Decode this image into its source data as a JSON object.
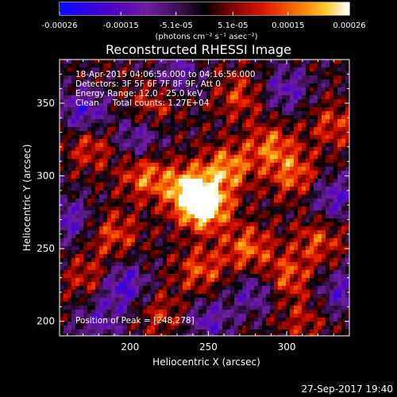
{
  "chart_data": {
    "type": "heatmap",
    "title": "Reconstructed RHESSI Image",
    "xlabel": "Heliocentric X (arcsec)",
    "ylabel": "Heliocentric Y (arcsec)",
    "xlim": [
      155,
      340
    ],
    "ylim": [
      190,
      380
    ],
    "xticks": [
      "200",
      "250",
      "300"
    ],
    "yticks": [
      "200",
      "250",
      "300",
      "350"
    ],
    "colorbar": {
      "min": -0.00026,
      "max": 0.00026,
      "tick_labels": [
        "-0.00026",
        "-0.00015",
        "-5.1e-05",
        "5.1e-05",
        "0.00015",
        "0.00026"
      ],
      "unit_label": "(photons cm⁻² s⁻¹ asec⁻²)"
    },
    "annotations": {
      "time_range": "18-Apr-2015 04:06:56.000 to 04:16:56.000",
      "detectors": "Detectors: 3F 5F 6F 7F 8F 9F, Att 0",
      "energy_range": "Energy Range: 12.0 - 25.0 keV",
      "method_counts": "Clean     Total counts: 1.27E+04",
      "peak_position": "Position of Peak = [248,278]"
    },
    "peak": {
      "x": 248,
      "y": 278
    },
    "hotspots": [
      {
        "x": 248,
        "y": 278,
        "v": 0.00026
      },
      {
        "x": 238,
        "y": 290,
        "v": 0.00024
      },
      {
        "x": 262,
        "y": 305,
        "v": 0.00018
      },
      {
        "x": 210,
        "y": 300,
        "v": 0.00016
      },
      {
        "x": 290,
        "y": 320,
        "v": 0.00015
      },
      {
        "x": 305,
        "y": 300,
        "v": 0.00014
      },
      {
        "x": 275,
        "y": 250,
        "v": 0.00015
      },
      {
        "x": 300,
        "y": 230,
        "v": 0.00014
      },
      {
        "x": 245,
        "y": 235,
        "v": 0.00013
      },
      {
        "x": 190,
        "y": 260,
        "v": 0.00012
      },
      {
        "x": 175,
        "y": 230,
        "v": 0.00011
      },
      {
        "x": 320,
        "y": 255,
        "v": 0.00012
      },
      {
        "x": 330,
        "y": 335,
        "v": 0.00011
      },
      {
        "x": 215,
        "y": 350,
        "v": 0.0001
      },
      {
        "x": 270,
        "y": 355,
        "v": 0.00011
      },
      {
        "x": 220,
        "y": 205,
        "v": 9e-05
      },
      {
        "x": 310,
        "y": 200,
        "v": 8e-05
      },
      {
        "x": 175,
        "y": 320,
        "v": 0.00011
      },
      {
        "x": 195,
        "y": 225,
        "v": -0.00018
      },
      {
        "x": 170,
        "y": 345,
        "v": -0.00016
      },
      {
        "x": 230,
        "y": 370,
        "v": -0.00012
      },
      {
        "x": 160,
        "y": 270,
        "v": -0.00014
      },
      {
        "x": 330,
        "y": 285,
        "v": -0.00014
      },
      {
        "x": 205,
        "y": 325,
        "v": -0.00012
      },
      {
        "x": 280,
        "y": 220,
        "v": -0.00012
      },
      {
        "x": 250,
        "y": 200,
        "v": -0.00013
      },
      {
        "x": 335,
        "y": 220,
        "v": -0.00013
      },
      {
        "x": 180,
        "y": 200,
        "v": -0.00012
      },
      {
        "x": 300,
        "y": 360,
        "v": -0.00013
      }
    ]
  },
  "footer": {
    "timestamp": "27-Sep-2017 19:40"
  }
}
